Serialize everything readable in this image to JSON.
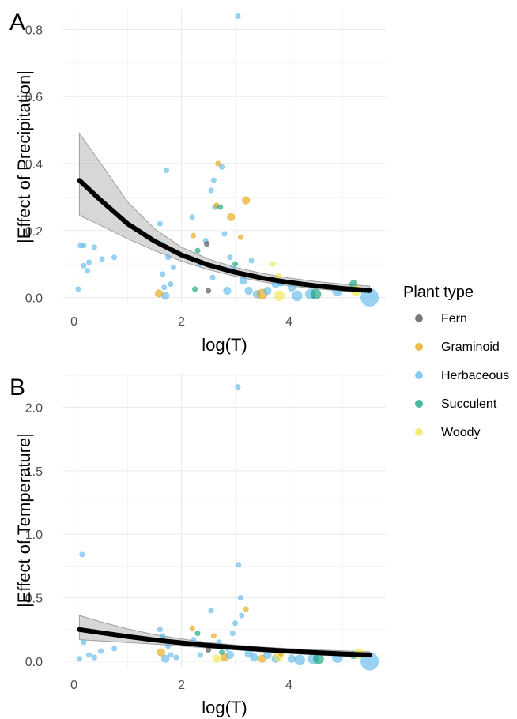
{
  "colors": {
    "Fern": "#404040",
    "Graminoid": "#E69F00",
    "Herbaceous": "#56B4E9",
    "Succulent": "#009E73",
    "Woody": "#F0E442",
    "fit_line": "#000000",
    "ribbon": "#bdbdbd"
  },
  "legend": {
    "title": "Plant type",
    "items": [
      "Fern",
      "Graminoid",
      "Herbaceous",
      "Succulent",
      "Woody"
    ]
  },
  "chart_data": [
    {
      "panel": "A",
      "type": "scatter",
      "xlabel": "log(T)",
      "ylabel": "|Effect of Precipitation|",
      "xlim": [
        -0.2,
        5.8
      ],
      "ylim": [
        -0.02,
        0.86
      ],
      "xticks": [
        "0",
        "2",
        "4"
      ],
      "yticks": [
        "0.0",
        "0.2",
        "0.4",
        "0.6",
        "0.8"
      ],
      "fit": {
        "x": [
          0.1,
          0.5,
          1.0,
          1.5,
          2.0,
          2.5,
          3.0,
          3.5,
          4.0,
          4.5,
          5.0,
          5.5
        ],
        "y": [
          0.35,
          0.29,
          0.22,
          0.168,
          0.127,
          0.097,
          0.075,
          0.058,
          0.045,
          0.035,
          0.027,
          0.021
        ],
        "lower": [
          0.245,
          0.215,
          0.175,
          0.14,
          0.108,
          0.083,
          0.063,
          0.047,
          0.035,
          0.026,
          0.019,
          0.013
        ],
        "upper": [
          0.49,
          0.4,
          0.285,
          0.205,
          0.15,
          0.115,
          0.09,
          0.072,
          0.058,
          0.048,
          0.04,
          0.034
        ]
      },
      "points": [
        {
          "x": 0.08,
          "y": 0.025,
          "type": "Herbaceous",
          "size": 1
        },
        {
          "x": 0.12,
          "y": 0.155,
          "type": "Herbaceous",
          "size": 1
        },
        {
          "x": 0.18,
          "y": 0.155,
          "type": "Herbaceous",
          "size": 1
        },
        {
          "x": 0.18,
          "y": 0.095,
          "type": "Herbaceous",
          "size": 1
        },
        {
          "x": 0.25,
          "y": 0.08,
          "type": "Herbaceous",
          "size": 1
        },
        {
          "x": 0.28,
          "y": 0.105,
          "type": "Herbaceous",
          "size": 1
        },
        {
          "x": 0.38,
          "y": 0.15,
          "type": "Herbaceous",
          "size": 1
        },
        {
          "x": 0.52,
          "y": 0.115,
          "type": "Herbaceous",
          "size": 1
        },
        {
          "x": 0.75,
          "y": 0.12,
          "type": "Herbaceous",
          "size": 1
        },
        {
          "x": 1.6,
          "y": 0.22,
          "type": "Herbaceous",
          "size": 1
        },
        {
          "x": 1.62,
          "y": 0.16,
          "type": "Herbaceous",
          "size": 1
        },
        {
          "x": 1.65,
          "y": 0.07,
          "type": "Herbaceous",
          "size": 1
        },
        {
          "x": 1.68,
          "y": 0.03,
          "type": "Herbaceous",
          "size": 1
        },
        {
          "x": 1.7,
          "y": 0.005,
          "type": "Herbaceous",
          "size": 2
        },
        {
          "x": 1.72,
          "y": 0.38,
          "type": "Herbaceous",
          "size": 1
        },
        {
          "x": 1.75,
          "y": 0.12,
          "type": "Herbaceous",
          "size": 1
        },
        {
          "x": 1.8,
          "y": 0.04,
          "type": "Herbaceous",
          "size": 1
        },
        {
          "x": 1.85,
          "y": 0.09,
          "type": "Herbaceous",
          "size": 1
        },
        {
          "x": 1.58,
          "y": 0.012,
          "type": "Graminoid",
          "size": 2
        },
        {
          "x": 2.2,
          "y": 0.24,
          "type": "Herbaceous",
          "size": 1
        },
        {
          "x": 2.22,
          "y": 0.185,
          "type": "Graminoid",
          "size": 1
        },
        {
          "x": 2.25,
          "y": 0.025,
          "type": "Succulent",
          "size": 1
        },
        {
          "x": 2.3,
          "y": 0.14,
          "type": "Succulent",
          "size": 1
        },
        {
          "x": 2.35,
          "y": 0.1,
          "type": "Herbaceous",
          "size": 1
        },
        {
          "x": 2.45,
          "y": 0.17,
          "type": "Herbaceous",
          "size": 1
        },
        {
          "x": 2.47,
          "y": 0.16,
          "type": "Fern",
          "size": 1
        },
        {
          "x": 2.5,
          "y": 0.02,
          "type": "Fern",
          "size": 1
        },
        {
          "x": 2.55,
          "y": 0.32,
          "type": "Herbaceous",
          "size": 1
        },
        {
          "x": 2.58,
          "y": 0.06,
          "type": "Herbaceous",
          "size": 1
        },
        {
          "x": 2.6,
          "y": 0.35,
          "type": "Herbaceous",
          "size": 1
        },
        {
          "x": 2.62,
          "y": 0.27,
          "type": "Herbaceous",
          "size": 1
        },
        {
          "x": 2.65,
          "y": 0.275,
          "type": "Graminoid",
          "size": 1
        },
        {
          "x": 2.68,
          "y": 0.4,
          "type": "Graminoid",
          "size": 1
        },
        {
          "x": 2.72,
          "y": 0.27,
          "type": "Succulent",
          "size": 1
        },
        {
          "x": 2.75,
          "y": 0.39,
          "type": "Herbaceous",
          "size": 1
        },
        {
          "x": 2.8,
          "y": 0.19,
          "type": "Herbaceous",
          "size": 1
        },
        {
          "x": 2.85,
          "y": 0.02,
          "type": "Herbaceous",
          "size": 2
        },
        {
          "x": 2.9,
          "y": 0.12,
          "type": "Herbaceous",
          "size": 1
        },
        {
          "x": 2.92,
          "y": 0.24,
          "type": "Graminoid",
          "size": 2
        },
        {
          "x": 2.95,
          "y": 0.08,
          "type": "Herbaceous",
          "size": 2
        },
        {
          "x": 3.0,
          "y": 0.1,
          "type": "Succulent",
          "size": 1
        },
        {
          "x": 3.05,
          "y": 0.84,
          "type": "Herbaceous",
          "size": 1
        },
        {
          "x": 3.1,
          "y": 0.18,
          "type": "Graminoid",
          "size": 1
        },
        {
          "x": 3.15,
          "y": 0.05,
          "type": "Herbaceous",
          "size": 2
        },
        {
          "x": 3.2,
          "y": 0.29,
          "type": "Graminoid",
          "size": 2
        },
        {
          "x": 3.25,
          "y": 0.02,
          "type": "Herbaceous",
          "size": 2
        },
        {
          "x": 3.3,
          "y": 0.11,
          "type": "Herbaceous",
          "size": 1
        },
        {
          "x": 3.4,
          "y": 0.01,
          "type": "Herbaceous",
          "size": 2
        },
        {
          "x": 3.5,
          "y": 0.01,
          "type": "Graminoid",
          "size": 3
        },
        {
          "x": 3.6,
          "y": 0.02,
          "type": "Herbaceous",
          "size": 2
        },
        {
          "x": 3.7,
          "y": 0.1,
          "type": "Woody",
          "size": 1
        },
        {
          "x": 3.75,
          "y": 0.04,
          "type": "Herbaceous",
          "size": 2
        },
        {
          "x": 3.8,
          "y": 0.065,
          "type": "Woody",
          "size": 1
        },
        {
          "x": 3.82,
          "y": 0.005,
          "type": "Woody",
          "size": 3
        },
        {
          "x": 3.85,
          "y": 0.045,
          "type": "Herbaceous",
          "size": 2
        },
        {
          "x": 4.05,
          "y": 0.03,
          "type": "Herbaceous",
          "size": 2
        },
        {
          "x": 4.15,
          "y": 0.005,
          "type": "Herbaceous",
          "size": 3
        },
        {
          "x": 4.4,
          "y": 0.01,
          "type": "Herbaceous",
          "size": 3
        },
        {
          "x": 4.5,
          "y": 0.01,
          "type": "Succulent",
          "size": 3
        },
        {
          "x": 4.9,
          "y": 0.02,
          "type": "Herbaceous",
          "size": 3
        },
        {
          "x": 5.2,
          "y": 0.04,
          "type": "Succulent",
          "size": 2
        },
        {
          "x": 5.25,
          "y": 0.02,
          "type": "Woody",
          "size": 3
        },
        {
          "x": 5.5,
          "y": 0.0,
          "type": "Herbaceous",
          "size": 6
        }
      ]
    },
    {
      "panel": "B",
      "type": "scatter",
      "xlabel": "log(T)",
      "ylabel": "|Effect of Temperature|",
      "xlim": [
        -0.2,
        5.8
      ],
      "ylim": [
        -0.05,
        2.27
      ],
      "xticks": [
        "0",
        "2",
        "4"
      ],
      "yticks": [
        "0.0",
        "0.5",
        "1.0",
        "1.5",
        "2.0"
      ],
      "fit": {
        "x": [
          0.1,
          0.5,
          1.0,
          1.5,
          2.0,
          2.5,
          3.0,
          3.5,
          4.0,
          4.5,
          5.0,
          5.5
        ],
        "y": [
          0.25,
          0.225,
          0.195,
          0.168,
          0.145,
          0.125,
          0.108,
          0.093,
          0.08,
          0.068,
          0.058,
          0.05
        ],
        "lower": [
          0.17,
          0.16,
          0.148,
          0.135,
          0.12,
          0.105,
          0.09,
          0.075,
          0.062,
          0.05,
          0.04,
          0.032
        ],
        "upper": [
          0.36,
          0.31,
          0.255,
          0.21,
          0.175,
          0.148,
          0.128,
          0.112,
          0.1,
          0.09,
          0.082,
          0.075
        ]
      },
      "points": [
        {
          "x": 0.1,
          "y": 0.02,
          "type": "Herbaceous",
          "size": 1
        },
        {
          "x": 0.15,
          "y": 0.84,
          "type": "Herbaceous",
          "size": 1
        },
        {
          "x": 0.18,
          "y": 0.15,
          "type": "Herbaceous",
          "size": 1
        },
        {
          "x": 0.28,
          "y": 0.05,
          "type": "Herbaceous",
          "size": 1
        },
        {
          "x": 0.38,
          "y": 0.03,
          "type": "Herbaceous",
          "size": 1
        },
        {
          "x": 0.5,
          "y": 0.08,
          "type": "Herbaceous",
          "size": 1
        },
        {
          "x": 0.75,
          "y": 0.1,
          "type": "Herbaceous",
          "size": 1
        },
        {
          "x": 1.6,
          "y": 0.25,
          "type": "Herbaceous",
          "size": 1
        },
        {
          "x": 1.62,
          "y": 0.07,
          "type": "Graminoid",
          "size": 2
        },
        {
          "x": 1.65,
          "y": 0.2,
          "type": "Herbaceous",
          "size": 1
        },
        {
          "x": 1.7,
          "y": 0.02,
          "type": "Herbaceous",
          "size": 2
        },
        {
          "x": 1.75,
          "y": 0.12,
          "type": "Herbaceous",
          "size": 1
        },
        {
          "x": 1.8,
          "y": 0.05,
          "type": "Herbaceous",
          "size": 1
        },
        {
          "x": 1.9,
          "y": 0.03,
          "type": "Herbaceous",
          "size": 1
        },
        {
          "x": 2.2,
          "y": 0.26,
          "type": "Graminoid",
          "size": 1
        },
        {
          "x": 2.22,
          "y": 0.17,
          "type": "Herbaceous",
          "size": 1
        },
        {
          "x": 2.3,
          "y": 0.22,
          "type": "Succulent",
          "size": 1
        },
        {
          "x": 2.35,
          "y": 0.05,
          "type": "Herbaceous",
          "size": 1
        },
        {
          "x": 2.5,
          "y": 0.09,
          "type": "Fern",
          "size": 1
        },
        {
          "x": 2.55,
          "y": 0.4,
          "type": "Herbaceous",
          "size": 1
        },
        {
          "x": 2.6,
          "y": 0.2,
          "type": "Graminoid",
          "size": 1
        },
        {
          "x": 2.65,
          "y": 0.02,
          "type": "Woody",
          "size": 2
        },
        {
          "x": 2.7,
          "y": 0.15,
          "type": "Herbaceous",
          "size": 1
        },
        {
          "x": 2.75,
          "y": 0.07,
          "type": "Succulent",
          "size": 1
        },
        {
          "x": 2.8,
          "y": 0.03,
          "type": "Graminoid",
          "size": 2
        },
        {
          "x": 2.85,
          "y": 0.1,
          "type": "Herbaceous",
          "size": 1
        },
        {
          "x": 2.9,
          "y": 0.05,
          "type": "Herbaceous",
          "size": 2
        },
        {
          "x": 2.95,
          "y": 0.22,
          "type": "Herbaceous",
          "size": 1
        },
        {
          "x": 3.0,
          "y": 0.3,
          "type": "Herbaceous",
          "size": 1
        },
        {
          "x": 3.05,
          "y": 2.16,
          "type": "Herbaceous",
          "size": 1
        },
        {
          "x": 3.06,
          "y": 0.76,
          "type": "Herbaceous",
          "size": 1
        },
        {
          "x": 3.1,
          "y": 0.5,
          "type": "Herbaceous",
          "size": 1
        },
        {
          "x": 3.12,
          "y": 0.36,
          "type": "Herbaceous",
          "size": 1
        },
        {
          "x": 3.2,
          "y": 0.41,
          "type": "Graminoid",
          "size": 1
        },
        {
          "x": 3.25,
          "y": 0.06,
          "type": "Herbaceous",
          "size": 2
        },
        {
          "x": 3.35,
          "y": 0.03,
          "type": "Herbaceous",
          "size": 2
        },
        {
          "x": 3.5,
          "y": 0.02,
          "type": "Graminoid",
          "size": 2
        },
        {
          "x": 3.6,
          "y": 0.05,
          "type": "Herbaceous",
          "size": 2
        },
        {
          "x": 3.75,
          "y": 0.02,
          "type": "Herbaceous",
          "size": 2
        },
        {
          "x": 3.8,
          "y": 0.04,
          "type": "Woody",
          "size": 3
        },
        {
          "x": 3.85,
          "y": 0.06,
          "type": "Graminoid",
          "size": 1
        },
        {
          "x": 4.05,
          "y": 0.02,
          "type": "Herbaceous",
          "size": 2
        },
        {
          "x": 4.2,
          "y": 0.01,
          "type": "Herbaceous",
          "size": 3
        },
        {
          "x": 4.45,
          "y": 0.02,
          "type": "Herbaceous",
          "size": 3
        },
        {
          "x": 4.55,
          "y": 0.02,
          "type": "Succulent",
          "size": 3
        },
        {
          "x": 4.9,
          "y": 0.03,
          "type": "Herbaceous",
          "size": 3
        },
        {
          "x": 5.2,
          "y": 0.05,
          "type": "Succulent",
          "size": 2
        },
        {
          "x": 5.3,
          "y": 0.06,
          "type": "Woody",
          "size": 3
        },
        {
          "x": 5.5,
          "y": 0.0,
          "type": "Herbaceous",
          "size": 6
        }
      ]
    }
  ]
}
